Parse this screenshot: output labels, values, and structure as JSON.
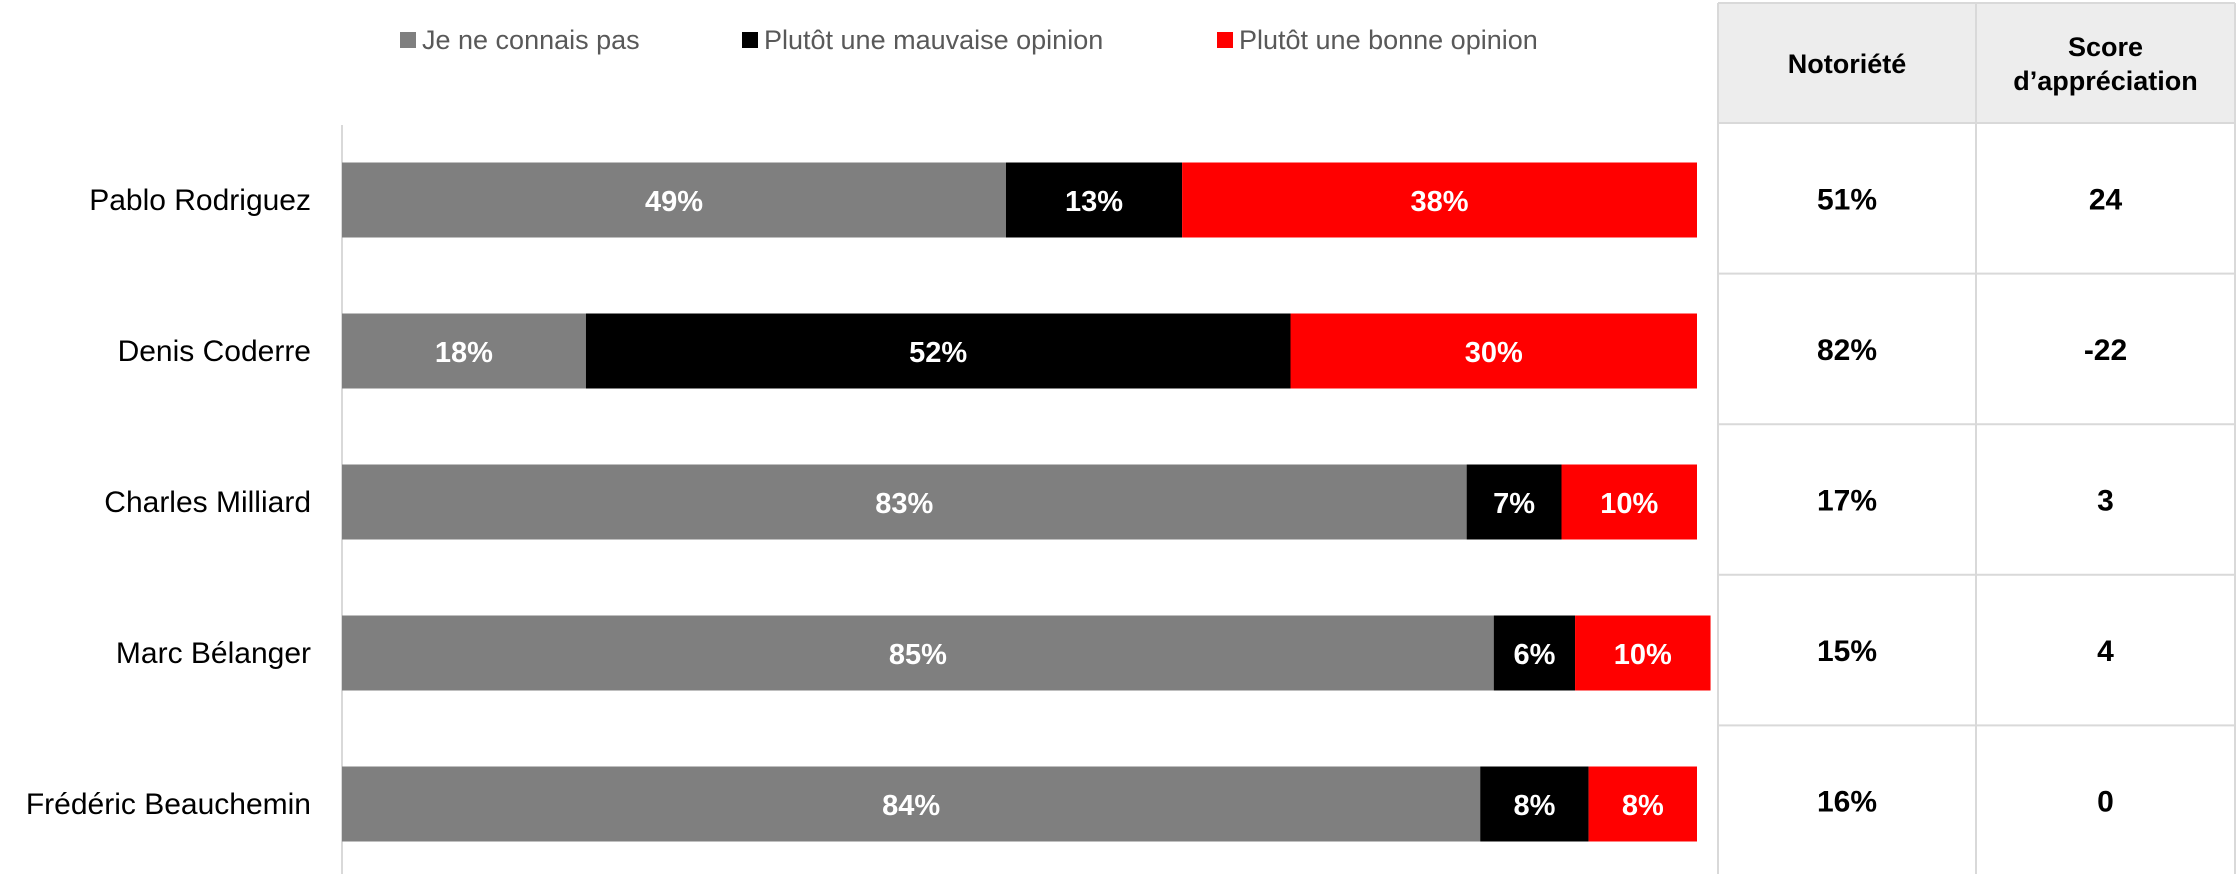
{
  "chart_data": {
    "type": "bar",
    "orientation": "horizontal",
    "stacked": true,
    "legend_position": "top",
    "grid": false,
    "xlim": [
      0,
      100
    ],
    "categories": [
      "Pablo Rodriguez",
      "Denis Coderre",
      "Charles Milliard",
      "Marc Bélanger",
      "Frédéric Beauchemin"
    ],
    "series": [
      {
        "name": "Je ne connais pas",
        "color": "#7f7f7f",
        "values": [
          49,
          18,
          83,
          85,
          84
        ]
      },
      {
        "name": "Plutôt une mauvaise opinion",
        "color": "#000000",
        "values": [
          13,
          52,
          7,
          6,
          8
        ]
      },
      {
        "name": "Plutôt une bonne opinion",
        "color": "#ff0000",
        "values": [
          38,
          30,
          10,
          10,
          8
        ]
      }
    ],
    "value_suffix": "%"
  },
  "table": {
    "header_fill": "#ededed",
    "border_color": "#d9d9d9",
    "columns": [
      {
        "label_lines": [
          "Notoriété"
        ]
      },
      {
        "label_lines": [
          "Score",
          "d’appréciation"
        ]
      }
    ],
    "rows": [
      [
        "51%",
        "24"
      ],
      [
        "82%",
        "-22"
      ],
      [
        "17%",
        "3"
      ],
      [
        "15%",
        "4"
      ],
      [
        "16%",
        "0"
      ]
    ]
  }
}
